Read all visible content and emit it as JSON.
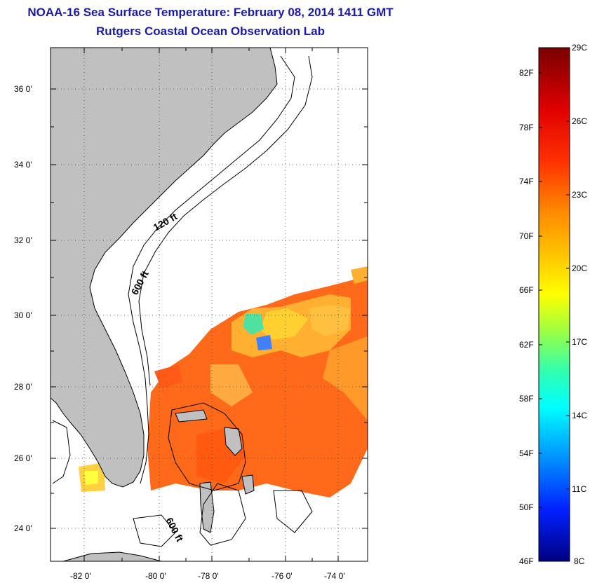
{
  "title": {
    "line1": "NOAA-16 Sea Surface Temperature:  February 08, 2014 1411 GMT",
    "line2": "Rutgers Coastal Ocean Observation Lab"
  },
  "map": {
    "lat_labels": [
      "36 0'",
      "34 0'",
      "32 0'",
      "30 0'",
      "28 0'",
      "26 0'",
      "24 0'"
    ],
    "lon_labels": [
      "-82 0'",
      "-80 0'",
      "-78 0'",
      "-76 0'",
      "-74 0'"
    ],
    "depth_labels": [
      "120 ft",
      "600 ft",
      "600 ft"
    ],
    "colors": {
      "land": "#bfbfbf",
      "frame": "#000000",
      "grid": "#555555"
    }
  },
  "colorbar": {
    "fahrenheit_labels": [
      "82F",
      "78F",
      "74F",
      "70F",
      "66F",
      "62F",
      "58F",
      "54F",
      "50F",
      "46F"
    ],
    "celsius_labels": [
      "29C",
      "26C",
      "23C",
      "20C",
      "17C",
      "14C",
      "11C",
      "8C"
    ],
    "colors": [
      "#800000",
      "#ff0000",
      "#ff8000",
      "#ffff00",
      "#80ff80",
      "#00ffff",
      "#0080ff",
      "#0000ff",
      "#000080"
    ]
  }
}
